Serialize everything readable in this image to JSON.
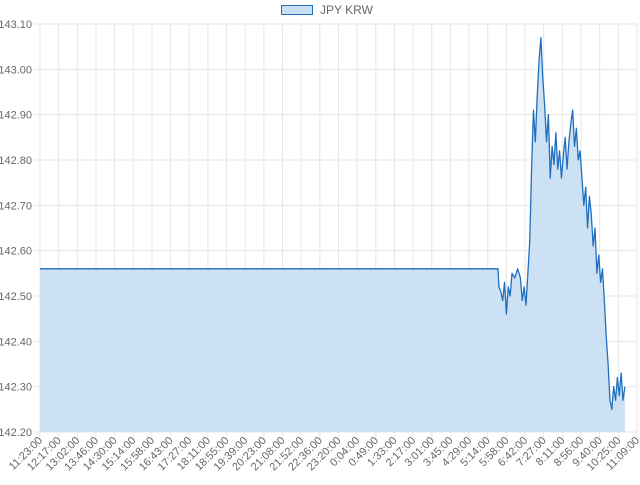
{
  "colors": {
    "line": "#1f6fbf",
    "fill": "#cadff4",
    "grid": "#e6e6e6"
  },
  "chart_data": {
    "type": "area",
    "title": "",
    "xlabel": "",
    "ylabel": "",
    "legend_position": "top",
    "grid": true,
    "ylim": [
      142.2,
      143.1
    ],
    "y_ticks": [
      142.2,
      142.3,
      142.4,
      142.5,
      142.6,
      142.7,
      142.8,
      142.9,
      143.0,
      143.1
    ],
    "y_tick_labels": [
      "142.20",
      "142.30",
      "142.40",
      "142.50",
      "142.60",
      "142.70",
      "142.80",
      "142.90",
      "143.00",
      "143.10"
    ],
    "x_tick_labels": [
      "11:23:00",
      "12:17:00",
      "13:02:00",
      "13:46:00",
      "14:30:00",
      "15:14:00",
      "15:58:00",
      "16:43:00",
      "17:27:00",
      "18:11:00",
      "18:55:00",
      "19:39:00",
      "20:23:00",
      "21:08:00",
      "21:52:00",
      "22:36:00",
      "23:20:00",
      "0:04:00",
      "0:49:00",
      "1:33:00",
      "2:17:00",
      "3:01:00",
      "3:45:00",
      "4:29:00",
      "5:14:00",
      "5:58:00",
      "6:42:00",
      "7:27:00",
      "8:11:00",
      "8:56:00",
      "9:40:00",
      "10:25:00",
      "11:09:00"
    ],
    "series": [
      {
        "name": "JPY KRW",
        "points": [
          [
            0,
            142.56
          ],
          [
            24.55,
            142.56
          ],
          [
            24.6,
            142.52
          ],
          [
            24.7,
            142.51
          ],
          [
            24.8,
            142.49
          ],
          [
            24.9,
            142.53
          ],
          [
            25.0,
            142.46
          ],
          [
            25.1,
            142.52
          ],
          [
            25.2,
            142.5
          ],
          [
            25.3,
            142.55
          ],
          [
            25.45,
            142.54
          ],
          [
            25.6,
            142.56
          ],
          [
            25.75,
            142.54
          ],
          [
            25.85,
            142.49
          ],
          [
            25.95,
            142.52
          ],
          [
            26.05,
            142.48
          ],
          [
            26.15,
            142.55
          ],
          [
            26.25,
            142.62
          ],
          [
            26.35,
            142.78
          ],
          [
            26.45,
            142.91
          ],
          [
            26.55,
            142.84
          ],
          [
            26.65,
            142.94
          ],
          [
            26.75,
            143.02
          ],
          [
            26.85,
            143.07
          ],
          [
            26.95,
            142.98
          ],
          [
            27.05,
            142.92
          ],
          [
            27.15,
            142.84
          ],
          [
            27.25,
            142.9
          ],
          [
            27.35,
            142.76
          ],
          [
            27.45,
            142.83
          ],
          [
            27.55,
            142.79
          ],
          [
            27.65,
            142.86
          ],
          [
            27.75,
            142.78
          ],
          [
            27.85,
            142.82
          ],
          [
            27.95,
            142.76
          ],
          [
            28.05,
            142.81
          ],
          [
            28.15,
            142.85
          ],
          [
            28.25,
            142.78
          ],
          [
            28.35,
            142.84
          ],
          [
            28.45,
            142.88
          ],
          [
            28.55,
            142.91
          ],
          [
            28.65,
            142.83
          ],
          [
            28.75,
            142.87
          ],
          [
            28.85,
            142.8
          ],
          [
            28.95,
            142.82
          ],
          [
            29.05,
            142.76
          ],
          [
            29.15,
            142.7
          ],
          [
            29.25,
            142.74
          ],
          [
            29.35,
            142.65
          ],
          [
            29.45,
            142.72
          ],
          [
            29.55,
            142.68
          ],
          [
            29.65,
            142.61
          ],
          [
            29.75,
            142.65
          ],
          [
            29.85,
            142.55
          ],
          [
            29.95,
            142.59
          ],
          [
            30.05,
            142.53
          ],
          [
            30.15,
            142.56
          ],
          [
            30.25,
            142.49
          ],
          [
            30.35,
            142.41
          ],
          [
            30.45,
            142.35
          ],
          [
            30.55,
            142.27
          ],
          [
            30.65,
            142.25
          ],
          [
            30.75,
            142.3
          ],
          [
            30.85,
            142.27
          ],
          [
            30.95,
            142.32
          ],
          [
            31.05,
            142.28
          ],
          [
            31.15,
            142.33
          ],
          [
            31.25,
            142.27
          ],
          [
            31.35,
            142.3
          ]
        ]
      }
    ]
  }
}
